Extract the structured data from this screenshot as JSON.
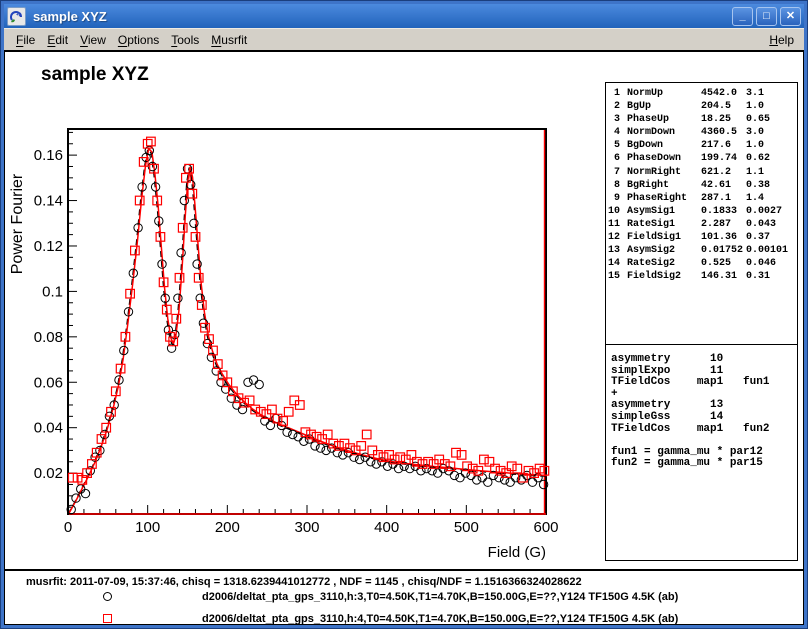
{
  "window": {
    "title": "sample XYZ"
  },
  "titlebar_buttons": [
    {
      "name": "minimize",
      "glyph": "_"
    },
    {
      "name": "maximize",
      "glyph": "□"
    },
    {
      "name": "close",
      "glyph": "✕"
    }
  ],
  "menu": {
    "items": [
      {
        "label": "File",
        "underline": 0
      },
      {
        "label": "Edit",
        "underline": 0
      },
      {
        "label": "View",
        "underline": 0
      },
      {
        "label": "Options",
        "underline": 0
      },
      {
        "label": "Tools",
        "underline": 0
      },
      {
        "label": "Musrfit",
        "underline": 0
      }
    ],
    "help": {
      "label": "Help",
      "underline": 0
    }
  },
  "plot": {
    "title": "sample XYZ"
  },
  "parameters": {
    "rows": [
      {
        "no": "1",
        "name": "NormUp",
        "value": "4542.0",
        "error": "3.1"
      },
      {
        "no": "2",
        "name": "BgUp",
        "value": "204.5",
        "error": "1.0"
      },
      {
        "no": "3",
        "name": "PhaseUp",
        "value": "18.25",
        "error": "0.65"
      },
      {
        "no": "4",
        "name": "NormDown",
        "value": "4360.5",
        "error": "3.0"
      },
      {
        "no": "5",
        "name": "BgDown",
        "value": "217.6",
        "error": "1.0"
      },
      {
        "no": "6",
        "name": "PhaseDown",
        "value": "199.74",
        "error": "0.62"
      },
      {
        "no": "7",
        "name": "NormRight",
        "value": "621.2",
        "error": "1.1"
      },
      {
        "no": "8",
        "name": "BgRight",
        "value": "42.61",
        "error": "0.38"
      },
      {
        "no": "9",
        "name": "PhaseRight",
        "value": "287.1",
        "error": "1.4"
      },
      {
        "no": "10",
        "name": "AsymSig1",
        "value": "0.1833",
        "error": "0.0027"
      },
      {
        "no": "11",
        "name": "RateSig1",
        "value": "2.287",
        "error": "0.043"
      },
      {
        "no": "12",
        "name": "FieldSig1",
        "value": "101.36",
        "error": "0.37"
      },
      {
        "no": "13",
        "name": "AsymSig2",
        "value": "0.01752",
        "error": "0.00101"
      },
      {
        "no": "14",
        "name": "RateSig2",
        "value": "0.525",
        "error": "0.046"
      },
      {
        "no": "15",
        "name": "FieldSig2",
        "value": "146.31",
        "error": "0.31"
      }
    ]
  },
  "theory_lines": [
    "asymmetry      10",
    "simplExpo      11",
    "TFieldCos    map1   fun1",
    "+",
    "asymmetry      13",
    "simpleGss      14",
    "TFieldCos    map1   fun2",
    "",
    "fun1 = gamma_mu * par12",
    "fun2 = gamma_mu * par15"
  ],
  "footer": {
    "info": "musrfit: 2011-07-09, 15:37:46, chisq = 1318.6239441012772 , NDF = 1145 , chisq/NDF = 1.1516366324028622",
    "legend": [
      {
        "marker": "circle",
        "color": "#000000",
        "label": "d2006/deltat_pta_gps_3110,h:3,T0=4.50K,T1=4.70K,B=150.00G,E=??,Y124 TF150G 4.5K (ab)"
      },
      {
        "marker": "square",
        "color": "#ff0000",
        "label": "d2006/deltat_pta_gps_3110,h:4,T0=4.50K,T1=4.70K,B=150.00G,E=??,Y124 TF150G 4.5K (ab)"
      }
    ]
  },
  "chart_data": {
    "type": "scatter",
    "title": "sample XYZ",
    "xlabel": "Field (G)",
    "ylabel": "Power Fourier",
    "xlim": [
      0,
      600
    ],
    "ylim": [
      0.002,
      0.1715
    ],
    "x_major_ticks": [
      0,
      100,
      200,
      300,
      400,
      500,
      600
    ],
    "x_minor_step": 20,
    "y_major_ticks": [
      0.02,
      0.04,
      0.06,
      0.08,
      0.1,
      0.12,
      0.14,
      0.16
    ],
    "y_minor_step": 0.005,
    "grid": false,
    "legend_position": "bottom-pad",
    "colors": {
      "fit_red": "#ff0000",
      "fit_black": "#000000",
      "circles": "#000000",
      "squares": "#ff0000"
    },
    "fit_curve": [
      [
        0,
        0.002
      ],
      [
        8,
        0.007
      ],
      [
        16,
        0.0125
      ],
      [
        24,
        0.018
      ],
      [
        32,
        0.024
      ],
      [
        40,
        0.031
      ],
      [
        48,
        0.039
      ],
      [
        56,
        0.049
      ],
      [
        62,
        0.058
      ],
      [
        68,
        0.07
      ],
      [
        74,
        0.086
      ],
      [
        80,
        0.103
      ],
      [
        86,
        0.122
      ],
      [
        91,
        0.14
      ],
      [
        96,
        0.155
      ],
      [
        100,
        0.1625
      ],
      [
        104,
        0.161
      ],
      [
        108,
        0.151
      ],
      [
        112,
        0.137
      ],
      [
        116,
        0.119
      ],
      [
        120,
        0.101
      ],
      [
        124,
        0.0875
      ],
      [
        128,
        0.079
      ],
      [
        131,
        0.0765
      ],
      [
        134,
        0.08
      ],
      [
        138,
        0.091
      ],
      [
        142,
        0.11
      ],
      [
        146,
        0.133
      ],
      [
        149,
        0.148
      ],
      [
        152,
        0.1545
      ],
      [
        155,
        0.15
      ],
      [
        158,
        0.138
      ],
      [
        162,
        0.12
      ],
      [
        166,
        0.103
      ],
      [
        170,
        0.0905
      ],
      [
        175,
        0.08
      ],
      [
        180,
        0.0735
      ],
      [
        186,
        0.0675
      ],
      [
        192,
        0.0635
      ],
      [
        200,
        0.059
      ],
      [
        210,
        0.0545
      ],
      [
        220,
        0.051
      ],
      [
        230,
        0.048
      ],
      [
        240,
        0.0455
      ],
      [
        252,
        0.0432
      ],
      [
        264,
        0.0412
      ],
      [
        276,
        0.0395
      ],
      [
        288,
        0.0378
      ],
      [
        300,
        0.036
      ],
      [
        315,
        0.0338
      ],
      [
        330,
        0.0318
      ],
      [
        345,
        0.03
      ],
      [
        360,
        0.0285
      ],
      [
        380,
        0.0266
      ],
      [
        400,
        0.025
      ],
      [
        420,
        0.024
      ],
      [
        440,
        0.0232
      ],
      [
        460,
        0.0225
      ],
      [
        480,
        0.0219
      ],
      [
        500,
        0.0212
      ],
      [
        520,
        0.0206
      ],
      [
        540,
        0.02
      ],
      [
        560,
        0.0195
      ],
      [
        580,
        0.019
      ],
      [
        600,
        0.0186
      ]
    ],
    "series": [
      {
        "name": "d2006/deltat_pta_gps_3110,h:3 (circles)",
        "marker": "circle",
        "points": [
          [
            4,
            0.004
          ],
          [
            10,
            0.009
          ],
          [
            16,
            0.013
          ],
          [
            22,
            0.011
          ],
          [
            28,
            0.021
          ],
          [
            34,
            0.027
          ],
          [
            40,
            0.03
          ],
          [
            46,
            0.037
          ],
          [
            52,
            0.045
          ],
          [
            58,
            0.05
          ],
          [
            64,
            0.061
          ],
          [
            70,
            0.074
          ],
          [
            76,
            0.091
          ],
          [
            82,
            0.108
          ],
          [
            88,
            0.128
          ],
          [
            93,
            0.146
          ],
          [
            98,
            0.159
          ],
          [
            102,
            0.162
          ],
          [
            106,
            0.155
          ],
          [
            110,
            0.146
          ],
          [
            114,
            0.131
          ],
          [
            118,
            0.112
          ],
          [
            122,
            0.097
          ],
          [
            126,
            0.083
          ],
          [
            130,
            0.075
          ],
          [
            134,
            0.081
          ],
          [
            138,
            0.097
          ],
          [
            142,
            0.117
          ],
          [
            146,
            0.14
          ],
          [
            150,
            0.154
          ],
          [
            154,
            0.147
          ],
          [
            158,
            0.13
          ],
          [
            162,
            0.112
          ],
          [
            166,
            0.097
          ],
          [
            170,
            0.086
          ],
          [
            175,
            0.077
          ],
          [
            180,
            0.071
          ],
          [
            186,
            0.065
          ],
          [
            192,
            0.06
          ],
          [
            198,
            0.057
          ],
          [
            205,
            0.053
          ],
          [
            212,
            0.05
          ],
          [
            219,
            0.048
          ],
          [
            226,
            0.06
          ],
          [
            233,
            0.061
          ],
          [
            240,
            0.059
          ],
          [
            247,
            0.043
          ],
          [
            254,
            0.041
          ],
          [
            261,
            0.044
          ],
          [
            268,
            0.041
          ],
          [
            275,
            0.038
          ],
          [
            282,
            0.037
          ],
          [
            289,
            0.036
          ],
          [
            296,
            0.034
          ],
          [
            303,
            0.035
          ],
          [
            310,
            0.032
          ],
          [
            317,
            0.031
          ],
          [
            324,
            0.03
          ],
          [
            331,
            0.031
          ],
          [
            338,
            0.029
          ],
          [
            345,
            0.028
          ],
          [
            352,
            0.029
          ],
          [
            359,
            0.027
          ],
          [
            366,
            0.026
          ],
          [
            373,
            0.027
          ],
          [
            380,
            0.025
          ],
          [
            387,
            0.024
          ],
          [
            394,
            0.025
          ],
          [
            401,
            0.023
          ],
          [
            408,
            0.024
          ],
          [
            415,
            0.022
          ],
          [
            422,
            0.023
          ],
          [
            429,
            0.022
          ],
          [
            436,
            0.023
          ],
          [
            443,
            0.021
          ],
          [
            450,
            0.022
          ],
          [
            457,
            0.021
          ],
          [
            464,
            0.02
          ],
          [
            471,
            0.022
          ],
          [
            478,
            0.021
          ],
          [
            485,
            0.019
          ],
          [
            492,
            0.018
          ],
          [
            499,
            0.02
          ],
          [
            506,
            0.019
          ],
          [
            513,
            0.017
          ],
          [
            520,
            0.018
          ],
          [
            527,
            0.016
          ],
          [
            534,
            0.019
          ],
          [
            541,
            0.018
          ],
          [
            548,
            0.017
          ],
          [
            555,
            0.016
          ],
          [
            562,
            0.018
          ],
          [
            569,
            0.017
          ],
          [
            576,
            0.019
          ],
          [
            583,
            0.016
          ],
          [
            590,
            0.018
          ],
          [
            597,
            0.015
          ]
        ]
      },
      {
        "name": "d2006/deltat_pta_gps_3110,h:4 (squares)",
        "marker": "square",
        "points": [
          [
            6,
            0.018
          ],
          [
            12,
            0.018
          ],
          [
            18,
            0.017
          ],
          [
            24,
            0.02
          ],
          [
            30,
            0.024
          ],
          [
            36,
            0.029
          ],
          [
            42,
            0.035
          ],
          [
            48,
            0.04
          ],
          [
            54,
            0.047
          ],
          [
            60,
            0.056
          ],
          [
            66,
            0.066
          ],
          [
            72,
            0.08
          ],
          [
            78,
            0.099
          ],
          [
            84,
            0.118
          ],
          [
            90,
            0.14
          ],
          [
            95,
            0.157
          ],
          [
            100,
            0.165
          ],
          [
            104,
            0.166
          ],
          [
            108,
            0.154
          ],
          [
            112,
            0.14
          ],
          [
            116,
            0.124
          ],
          [
            120,
            0.104
          ],
          [
            124,
            0.092
          ],
          [
            128,
            0.08
          ],
          [
            132,
            0.078
          ],
          [
            136,
            0.088
          ],
          [
            140,
            0.106
          ],
          [
            144,
            0.128
          ],
          [
            148,
            0.15
          ],
          [
            152,
            0.154
          ],
          [
            156,
            0.143
          ],
          [
            160,
            0.124
          ],
          [
            164,
            0.106
          ],
          [
            168,
            0.094
          ],
          [
            172,
            0.084
          ],
          [
            177,
            0.079
          ],
          [
            182,
            0.074
          ],
          [
            188,
            0.068
          ],
          [
            194,
            0.063
          ],
          [
            200,
            0.06
          ],
          [
            207,
            0.056
          ],
          [
            214,
            0.053
          ],
          [
            221,
            0.051
          ],
          [
            228,
            0.052
          ],
          [
            235,
            0.048
          ],
          [
            242,
            0.047
          ],
          [
            249,
            0.046
          ],
          [
            256,
            0.048
          ],
          [
            263,
            0.044
          ],
          [
            270,
            0.043
          ],
          [
            277,
            0.047
          ],
          [
            284,
            0.052
          ],
          [
            291,
            0.05
          ],
          [
            298,
            0.038
          ],
          [
            305,
            0.037
          ],
          [
            312,
            0.036
          ],
          [
            319,
            0.035
          ],
          [
            326,
            0.037
          ],
          [
            333,
            0.033
          ],
          [
            340,
            0.032
          ],
          [
            347,
            0.033
          ],
          [
            354,
            0.031
          ],
          [
            361,
            0.03
          ],
          [
            368,
            0.032
          ],
          [
            375,
            0.037
          ],
          [
            382,
            0.03
          ],
          [
            389,
            0.028
          ],
          [
            396,
            0.027
          ],
          [
            403,
            0.028
          ],
          [
            410,
            0.026
          ],
          [
            417,
            0.027
          ],
          [
            424,
            0.026
          ],
          [
            431,
            0.028
          ],
          [
            438,
            0.025
          ],
          [
            445,
            0.024
          ],
          [
            452,
            0.025
          ],
          [
            459,
            0.024
          ],
          [
            466,
            0.026
          ],
          [
            473,
            0.024
          ],
          [
            480,
            0.023
          ],
          [
            487,
            0.029
          ],
          [
            494,
            0.028
          ],
          [
            501,
            0.023
          ],
          [
            508,
            0.022
          ],
          [
            515,
            0.021
          ],
          [
            522,
            0.026
          ],
          [
            529,
            0.025
          ],
          [
            536,
            0.022
          ],
          [
            543,
            0.021
          ],
          [
            550,
            0.02
          ],
          [
            557,
            0.023
          ],
          [
            564,
            0.022
          ],
          [
            571,
            0.018
          ],
          [
            578,
            0.021
          ],
          [
            585,
            0.02
          ],
          [
            592,
            0.022
          ],
          [
            598,
            0.021
          ]
        ]
      }
    ]
  }
}
